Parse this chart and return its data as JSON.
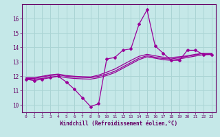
{
  "xlabel": "Windchill (Refroidissement éolien,°C)",
  "background_color": "#c5e8e8",
  "line_color": "#990099",
  "grid_color": "#aad4d4",
  "x_hours": [
    0,
    1,
    2,
    3,
    4,
    5,
    6,
    7,
    8,
    9,
    10,
    11,
    12,
    13,
    14,
    15,
    16,
    17,
    18,
    19,
    20,
    21,
    22,
    23
  ],
  "line1_y": [
    11.8,
    11.7,
    11.8,
    11.9,
    12.0,
    11.6,
    11.1,
    10.5,
    9.9,
    10.1,
    13.2,
    13.3,
    13.8,
    13.9,
    15.6,
    16.6,
    14.1,
    13.6,
    13.1,
    13.1,
    13.8,
    13.8,
    13.5,
    13.5
  ],
  "line2_y": [
    11.8,
    11.8,
    11.85,
    11.95,
    12.0,
    11.9,
    11.85,
    11.82,
    11.8,
    11.9,
    12.05,
    12.25,
    12.55,
    12.85,
    13.15,
    13.35,
    13.25,
    13.15,
    13.1,
    13.2,
    13.3,
    13.4,
    13.5,
    13.52
  ],
  "line3_y": [
    11.85,
    11.85,
    11.95,
    12.05,
    12.1,
    12.0,
    11.95,
    11.92,
    11.9,
    12.0,
    12.15,
    12.35,
    12.65,
    12.95,
    13.25,
    13.42,
    13.32,
    13.22,
    13.2,
    13.28,
    13.38,
    13.48,
    13.58,
    13.58
  ],
  "line4_y": [
    11.9,
    11.9,
    12.0,
    12.1,
    12.15,
    12.05,
    12.0,
    11.97,
    11.95,
    12.08,
    12.28,
    12.5,
    12.8,
    13.1,
    13.38,
    13.52,
    13.42,
    13.32,
    13.3,
    13.35,
    13.42,
    13.52,
    13.6,
    13.6
  ],
  "ylim": [
    9.5,
    17.0
  ],
  "yticks": [
    10,
    11,
    12,
    13,
    14,
    15,
    16
  ],
  "xtick_labels": [
    "0",
    "1",
    "2",
    "3",
    "4",
    "5",
    "6",
    "7",
    "8",
    "9",
    "10",
    "11",
    "12",
    "13",
    "14",
    "15",
    "16",
    "17",
    "18",
    "19",
    "20",
    "21",
    "22",
    "23"
  ]
}
